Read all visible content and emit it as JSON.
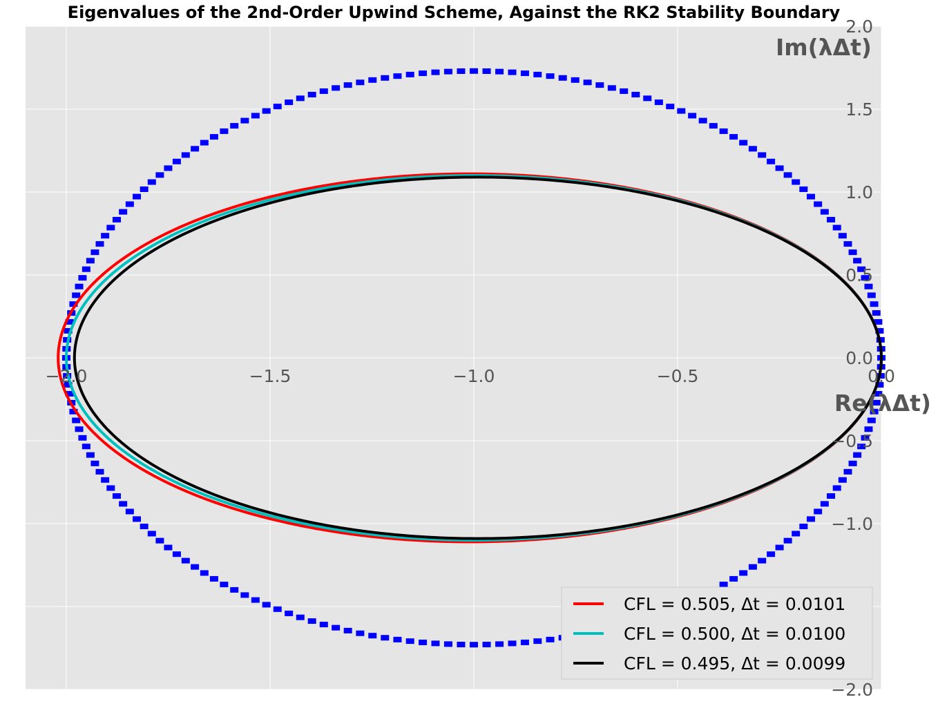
{
  "chart_data": {
    "type": "line",
    "title": "Eigenvalues of the 2nd-Order Upwind Scheme, Against the RK2 Stability Boundary",
    "xlabel": "Re(λΔt)",
    "ylabel": "Im(λΔt)",
    "xlim": [
      -2.1,
      0.0
    ],
    "ylim": [
      -2.0,
      2.0
    ],
    "x_ticks": [
      -2.0,
      -1.5,
      -1.0,
      -0.5,
      0.0
    ],
    "x_tick_labels": [
      "−2.0",
      "−1.5",
      "−1.0",
      "−0.5",
      "0.0"
    ],
    "y_ticks": [
      -2.0,
      -1.5,
      -1.0,
      -0.5,
      0.0,
      0.5,
      1.0,
      1.5,
      2.0
    ],
    "y_tick_labels": [
      "−2.0",
      "−1.5",
      "−1.0",
      "−0.5",
      "0.0",
      "0.5",
      "1.0",
      "1.5",
      "2.0"
    ],
    "grid": true,
    "legend_position": "bottom-right",
    "background": "#e5e5e5",
    "series": [
      {
        "kind": "markers",
        "color": "#0000ff",
        "shape": "ellipse",
        "center": [
          -1.0,
          0.0
        ],
        "radius_x": 1.0,
        "radius_y": 1.73
      },
      {
        "name": "CFL = 0.505, Δt = 0.0101",
        "kind": "line",
        "color": "#ff0000",
        "shape": "ellipse",
        "center": [
          -1.01,
          0.0
        ],
        "radius_x": 1.01,
        "radius_y": 1.11
      },
      {
        "name": "CFL = 0.500, Δt = 0.0100",
        "kind": "line",
        "color": "#00bfbf",
        "shape": "ellipse",
        "center": [
          -1.0,
          0.0
        ],
        "radius_x": 1.0,
        "radius_y": 1.1
      },
      {
        "name": "CFL = 0.495, Δt = 0.0099",
        "kind": "line",
        "color": "#000000",
        "shape": "ellipse",
        "center": [
          -0.99,
          0.0
        ],
        "radius_x": 0.99,
        "radius_y": 1.09
      }
    ]
  }
}
